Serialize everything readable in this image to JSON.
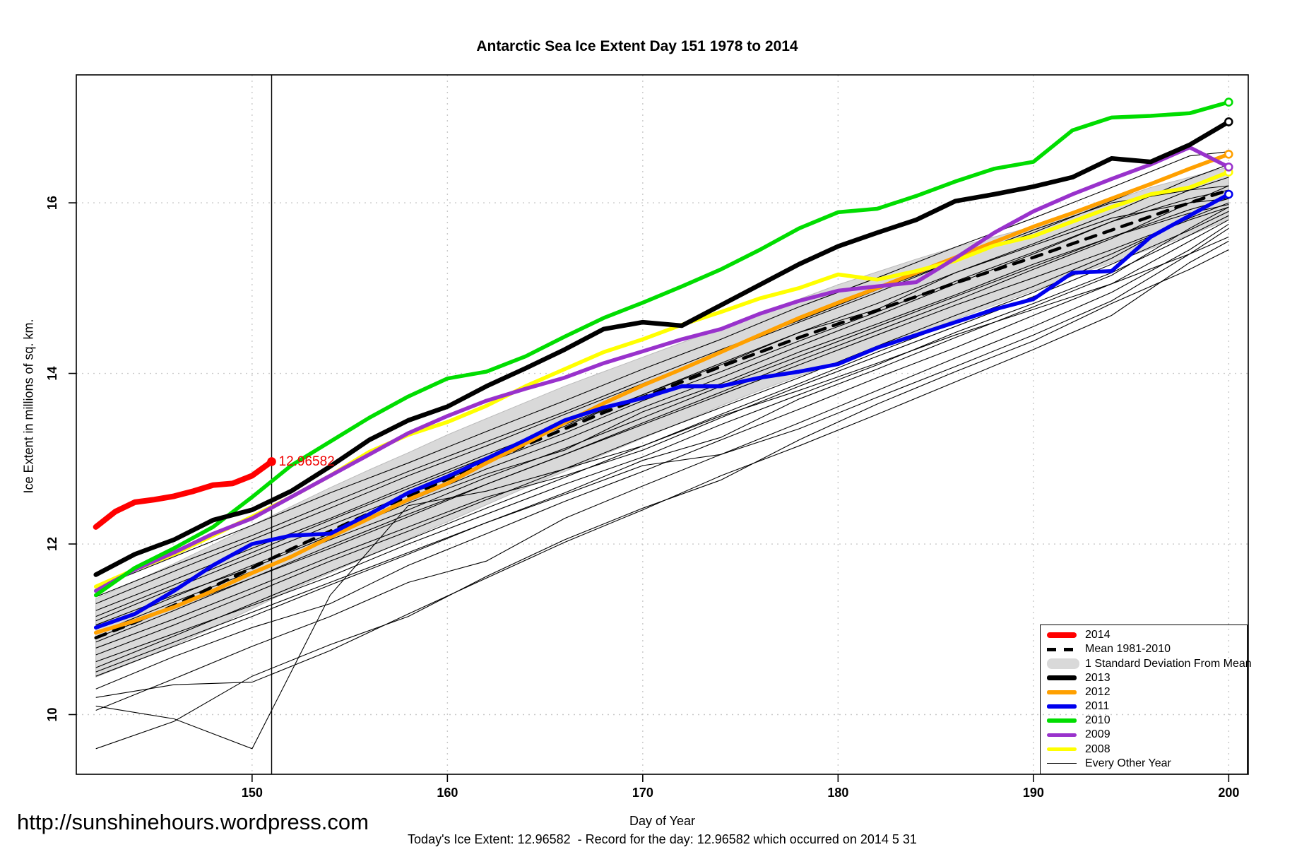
{
  "title": "Antarctic Sea Ice Extent Day 151 1978 to 2014",
  "watermark": "http://sunshinehours.wordpress.com",
  "footer": "Today's Ice Extent: 12.96582  - Record for the day: 12.96582 which occurred on 2014 5 31",
  "annotation": {
    "text": "12.96582",
    "day": 151,
    "value": 12.96582,
    "color": "#f00000"
  },
  "legend": [
    {
      "label": "2014",
      "color": "#ff0000",
      "swatch": "thick"
    },
    {
      "label": "Mean 1981-2010",
      "color": "#000000",
      "swatch": "dashed"
    },
    {
      "label": "1 Standard Deviation From Mean",
      "color": "#d9d9d9",
      "swatch": "band"
    },
    {
      "label": "2013",
      "color": "#000000",
      "swatch": "line2013"
    },
    {
      "label": "2012",
      "color": "#ffa000",
      "swatch": "line"
    },
    {
      "label": "2011",
      "color": "#0000ee",
      "swatch": "line"
    },
    {
      "label": "2010",
      "color": "#00dd00",
      "swatch": "line"
    },
    {
      "label": "2009",
      "color": "#9932cc",
      "swatch": "line"
    },
    {
      "label": "2008",
      "color": "#ffff00",
      "swatch": "line"
    },
    {
      "label": "Every Other Year",
      "color": "#000000",
      "swatch": "thin"
    }
  ],
  "chart_data": {
    "type": "line",
    "title": "Antarctic Sea Ice Extent Day 151 1978 to 2014",
    "xlabel": "Day of Year",
    "ylabel": "Ice Extent in millions of sq. km.",
    "xlim": [
      141,
      201
    ],
    "ylim": [
      9.3,
      17.5
    ],
    "x_ticks": [
      150,
      160,
      170,
      180,
      190,
      200
    ],
    "y_ticks": [
      10,
      12,
      14,
      16
    ],
    "grid": true,
    "legend_position": "bottom-right",
    "marker_line_day": 151,
    "x": [
      142,
      144,
      146,
      148,
      150,
      152,
      154,
      156,
      158,
      160,
      162,
      164,
      166,
      168,
      170,
      172,
      174,
      176,
      178,
      180,
      182,
      184,
      186,
      188,
      190,
      192,
      194,
      196,
      198,
      200
    ],
    "band": {
      "fill": "#d9d9d9",
      "edge": "#bbbbbb",
      "upper": [
        11.36,
        11.56,
        11.77,
        11.99,
        12.22,
        12.44,
        12.66,
        12.87,
        13.07,
        13.28,
        13.47,
        13.66,
        13.85,
        14.02,
        14.19,
        14.36,
        14.53,
        14.7,
        14.87,
        15.04,
        15.19,
        15.34,
        15.48,
        15.6,
        15.72,
        15.86,
        16.02,
        16.18,
        16.3,
        16.42
      ],
      "lower": [
        10.44,
        10.62,
        10.81,
        11.02,
        11.24,
        11.46,
        11.66,
        11.86,
        12.06,
        12.26,
        12.46,
        12.66,
        12.85,
        13.05,
        13.24,
        13.43,
        13.62,
        13.8,
        13.97,
        14.13,
        14.29,
        14.46,
        14.63,
        14.8,
        14.97,
        15.14,
        15.3,
        15.46,
        15.62,
        15.8
      ]
    },
    "series": [
      {
        "name": "Mean 1981-2010",
        "color": "#000000",
        "width": 4.5,
        "dash": "15 12",
        "values": [
          10.9,
          11.08,
          11.28,
          11.5,
          11.72,
          11.94,
          12.15,
          12.36,
          12.56,
          12.76,
          12.96,
          13.16,
          13.35,
          13.54,
          13.72,
          13.9,
          14.08,
          14.25,
          14.42,
          14.58,
          14.74,
          14.9,
          15.06,
          15.21,
          15.36,
          15.52,
          15.68,
          15.84,
          16.0,
          16.15
        ]
      },
      {
        "name": "2012",
        "color": "#ffa000",
        "width": 5.5,
        "end_marker": "open",
        "values": [
          10.96,
          11.1,
          11.26,
          11.45,
          11.66,
          11.85,
          12.08,
          12.3,
          12.52,
          12.71,
          12.95,
          13.18,
          13.42,
          13.65,
          13.86,
          14.05,
          14.25,
          14.45,
          14.65,
          14.83,
          15.0,
          15.18,
          15.36,
          15.54,
          15.72,
          15.88,
          16.05,
          16.22,
          16.4,
          16.57
        ]
      },
      {
        "name": "2011",
        "color": "#0000ee",
        "width": 5.5,
        "end_marker": "open",
        "values": [
          11.02,
          11.18,
          11.45,
          11.75,
          12.0,
          12.1,
          12.12,
          12.35,
          12.6,
          12.79,
          13.0,
          13.22,
          13.45,
          13.6,
          13.71,
          13.85,
          13.85,
          13.95,
          14.02,
          14.11,
          14.3,
          14.45,
          14.6,
          14.75,
          14.87,
          15.18,
          15.2,
          15.6,
          15.85,
          16.1
        ]
      },
      {
        "name": "2008",
        "color": "#ffff00",
        "width": 5.5,
        "end_marker": "open",
        "values": [
          11.5,
          11.7,
          11.88,
          12.1,
          12.32,
          12.55,
          12.8,
          13.08,
          13.28,
          13.43,
          13.62,
          13.85,
          14.05,
          14.25,
          14.4,
          14.57,
          14.72,
          14.88,
          15.0,
          15.16,
          15.1,
          15.2,
          15.32,
          15.5,
          15.61,
          15.78,
          15.95,
          16.1,
          16.18,
          16.36
        ]
      },
      {
        "name": "2009",
        "color": "#9932cc",
        "width": 5.5,
        "end_marker": "open",
        "values": [
          11.45,
          11.7,
          11.9,
          12.12,
          12.3,
          12.55,
          12.8,
          13.05,
          13.3,
          13.5,
          13.68,
          13.82,
          13.95,
          14.12,
          14.26,
          14.4,
          14.52,
          14.7,
          14.85,
          14.97,
          15.02,
          15.07,
          15.35,
          15.65,
          15.9,
          16.1,
          16.28,
          16.45,
          16.65,
          16.42
        ]
      },
      {
        "name": "2010",
        "color": "#00dd00",
        "width": 5.5,
        "end_marker": "open",
        "values": [
          11.4,
          11.72,
          11.95,
          12.2,
          12.55,
          12.92,
          13.2,
          13.48,
          13.73,
          13.94,
          14.02,
          14.2,
          14.43,
          14.65,
          14.83,
          15.02,
          15.22,
          15.45,
          15.7,
          15.89,
          15.93,
          16.08,
          16.25,
          16.4,
          16.48,
          16.85,
          17.0,
          17.02,
          17.05,
          17.18
        ]
      },
      {
        "name": "2013",
        "color": "#000000",
        "width": 6.5,
        "end_marker": "open",
        "values": [
          11.64,
          11.88,
          12.05,
          12.28,
          12.4,
          12.62,
          12.91,
          13.22,
          13.45,
          13.61,
          13.85,
          14.06,
          14.28,
          14.52,
          14.6,
          14.56,
          14.8,
          15.04,
          15.28,
          15.49,
          15.65,
          15.8,
          16.02,
          16.1,
          16.19,
          16.3,
          16.52,
          16.48,
          16.68,
          16.95
        ]
      },
      {
        "name": "2014",
        "color": "#ff0000",
        "width": 8,
        "end_marker": "filled",
        "x": [
          142,
          143,
          144,
          145,
          146,
          147,
          148,
          149,
          150,
          151
        ],
        "values": [
          12.2,
          12.38,
          12.49,
          12.52,
          12.56,
          12.62,
          12.69,
          12.71,
          12.8,
          12.96582
        ]
      }
    ],
    "every_other_year": {
      "x": [
        142,
        146,
        150,
        154,
        158,
        162,
        166,
        170,
        174,
        178,
        182,
        186,
        190,
        194,
        198,
        200
      ],
      "lines": [
        [
          9.6,
          9.92,
          10.45,
          10.82,
          11.15,
          11.62,
          12.05,
          12.42,
          12.75,
          13.22,
          13.64,
          14.02,
          14.38,
          14.82,
          15.22,
          15.45
        ],
        [
          10.1,
          9.95,
          9.6,
          11.4,
          12.45,
          12.62,
          12.88,
          13.15,
          13.5,
          13.8,
          14.12,
          14.45,
          14.75,
          15.05,
          15.4,
          15.6
        ],
        [
          10.05,
          10.42,
          10.8,
          11.15,
          11.55,
          11.8,
          12.3,
          12.68,
          13.05,
          13.42,
          13.8,
          14.18,
          14.55,
          14.95,
          15.45,
          15.75
        ],
        [
          10.2,
          10.35,
          10.38,
          10.75,
          11.18,
          11.6,
          12.02,
          12.4,
          12.8,
          13.15,
          13.52,
          13.9,
          14.28,
          14.68,
          15.3,
          15.55
        ],
        [
          10.3,
          10.68,
          11.02,
          11.3,
          11.75,
          12.12,
          12.5,
          12.85,
          13.22,
          13.58,
          13.95,
          14.3,
          14.68,
          15.05,
          15.55,
          15.8
        ],
        [
          10.45,
          10.8,
          11.15,
          11.52,
          11.88,
          12.25,
          12.6,
          12.98,
          13.25,
          13.7,
          14.05,
          14.42,
          14.78,
          15.15,
          15.7,
          15.95
        ],
        [
          10.5,
          10.85,
          11.2,
          11.55,
          11.9,
          12.25,
          12.58,
          12.92,
          13.05,
          13.35,
          13.72,
          14.08,
          14.45,
          14.85,
          15.4,
          15.7
        ],
        [
          10.55,
          10.92,
          11.3,
          11.68,
          12.05,
          12.42,
          12.78,
          13.15,
          13.52,
          13.88,
          14.25,
          14.6,
          14.95,
          15.35,
          15.85,
          16.1
        ],
        [
          10.62,
          10.95,
          11.28,
          11.62,
          12.0,
          12.35,
          12.7,
          13.02,
          13.4,
          13.75,
          14.1,
          14.48,
          14.82,
          15.18,
          15.62,
          15.85
        ],
        [
          10.7,
          11.05,
          11.42,
          11.8,
          12.15,
          12.52,
          12.88,
          13.25,
          13.6,
          13.95,
          14.32,
          14.68,
          15.02,
          15.4,
          15.82,
          16.0
        ],
        [
          10.78,
          11.12,
          11.48,
          11.85,
          12.2,
          12.55,
          12.8,
          13.1,
          13.48,
          13.85,
          14.2,
          14.55,
          14.9,
          15.28,
          15.68,
          15.9
        ],
        [
          10.85,
          11.22,
          11.6,
          11.95,
          12.32,
          12.7,
          13.05,
          13.42,
          13.78,
          14.15,
          14.5,
          14.85,
          15.22,
          15.58,
          16.0,
          16.2
        ],
        [
          10.9,
          11.25,
          11.6,
          11.98,
          12.35,
          12.7,
          13.05,
          13.4,
          13.75,
          14.1,
          14.45,
          14.8,
          15.12,
          15.45,
          15.8,
          15.95
        ],
        [
          10.95,
          11.32,
          11.68,
          12.05,
          12.4,
          12.78,
          13.12,
          13.48,
          13.85,
          14.2,
          14.55,
          14.9,
          15.25,
          15.6,
          15.92,
          16.05
        ],
        [
          11.0,
          11.38,
          11.75,
          12.12,
          12.5,
          12.88,
          13.22,
          13.6,
          13.95,
          14.32,
          14.68,
          15.05,
          15.4,
          15.78,
          16.15,
          16.3
        ],
        [
          11.05,
          11.4,
          11.72,
          12.1,
          12.48,
          12.82,
          13.1,
          13.55,
          13.88,
          14.25,
          14.58,
          14.92,
          15.28,
          15.6,
          15.88,
          15.98
        ],
        [
          11.1,
          11.48,
          11.85,
          12.22,
          12.58,
          12.95,
          13.3,
          13.68,
          14.02,
          14.38,
          14.72,
          15.08,
          15.42,
          15.78,
          16.05,
          16.15
        ],
        [
          11.15,
          11.52,
          11.9,
          12.28,
          12.65,
          13.02,
          13.38,
          13.75,
          14.1,
          14.48,
          14.82,
          15.18,
          15.52,
          15.88,
          16.28,
          16.45
        ],
        [
          11.22,
          11.58,
          11.95,
          12.3,
          12.68,
          13.05,
          13.4,
          13.75,
          14.12,
          14.48,
          14.75,
          15.18,
          15.5,
          15.82,
          16.0,
          16.05
        ],
        [
          11.3,
          11.68,
          12.05,
          12.42,
          12.8,
          13.15,
          13.52,
          13.88,
          14.25,
          14.6,
          14.95,
          15.32,
          15.65,
          16.02,
          16.4,
          16.55
        ],
        [
          11.38,
          11.75,
          12.1,
          12.48,
          12.85,
          13.2,
          13.55,
          13.92,
          14.28,
          14.62,
          14.98,
          15.32,
          15.68,
          16.0,
          16.15,
          16.2
        ],
        [
          11.48,
          11.85,
          12.22,
          12.6,
          12.95,
          13.32,
          13.68,
          14.05,
          14.4,
          14.78,
          15.12,
          15.48,
          15.82,
          16.18,
          16.55,
          16.6
        ]
      ]
    }
  }
}
